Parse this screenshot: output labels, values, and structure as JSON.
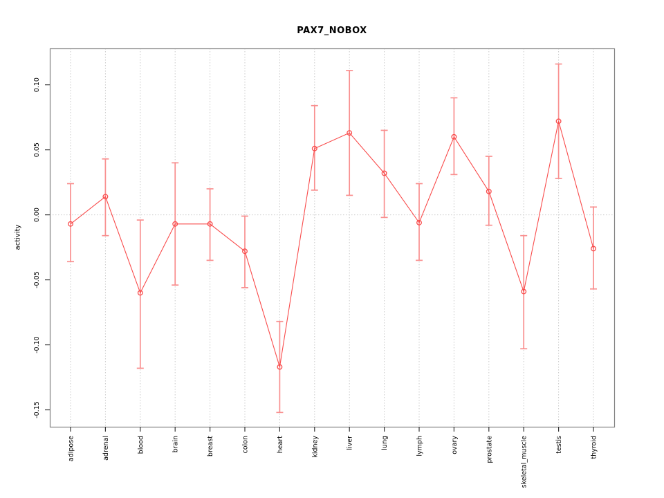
{
  "chart_data": {
    "type": "line",
    "subtype": "points-with-error-bars",
    "title": "PAX7_NOBOX",
    "ylabel": "activity",
    "xlabel": "",
    "legend": "none",
    "categories": [
      "adipose",
      "adrenal",
      "blood",
      "brain",
      "breast",
      "colon",
      "heart",
      "kidney",
      "liver",
      "lung",
      "lymph",
      "ovary",
      "prostate",
      "skeletal_muscle",
      "testis",
      "thyroid"
    ],
    "series": [
      {
        "name": "activity",
        "values": [
          -0.007,
          0.014,
          -0.06,
          -0.007,
          -0.007,
          -0.028,
          -0.117,
          0.051,
          0.063,
          0.032,
          -0.006,
          0.06,
          0.018,
          -0.059,
          0.072,
          -0.026
        ],
        "lower": [
          -0.036,
          -0.016,
          -0.118,
          -0.054,
          -0.035,
          -0.056,
          -0.152,
          0.019,
          0.015,
          -0.002,
          -0.035,
          0.031,
          -0.008,
          -0.103,
          0.028,
          -0.057
        ],
        "upper": [
          0.024,
          0.043,
          -0.004,
          0.04,
          0.02,
          -0.001,
          -0.082,
          0.084,
          0.111,
          0.065,
          0.024,
          0.09,
          0.045,
          -0.016,
          0.116,
          0.006
        ]
      }
    ],
    "y_ticks": [
      "0.10",
      "0.05",
      "0.00",
      "-0.05",
      "-0.10",
      "-0.15"
    ],
    "y_tick_values": [
      0.1,
      0.05,
      0.0,
      -0.05,
      -0.1,
      -0.15
    ],
    "ylim": [
      -0.163,
      0.128
    ],
    "grid": {
      "vertical_dotted_per_category": true,
      "horizontal_dotted_at_zero": true
    },
    "colors": {
      "line": "#f94b4b",
      "errorbar": "#f98f8f",
      "grid": "#c9c9c9",
      "box": "#808080",
      "tick": "#333333",
      "text": "#000000",
      "background": "#ffffff"
    }
  }
}
